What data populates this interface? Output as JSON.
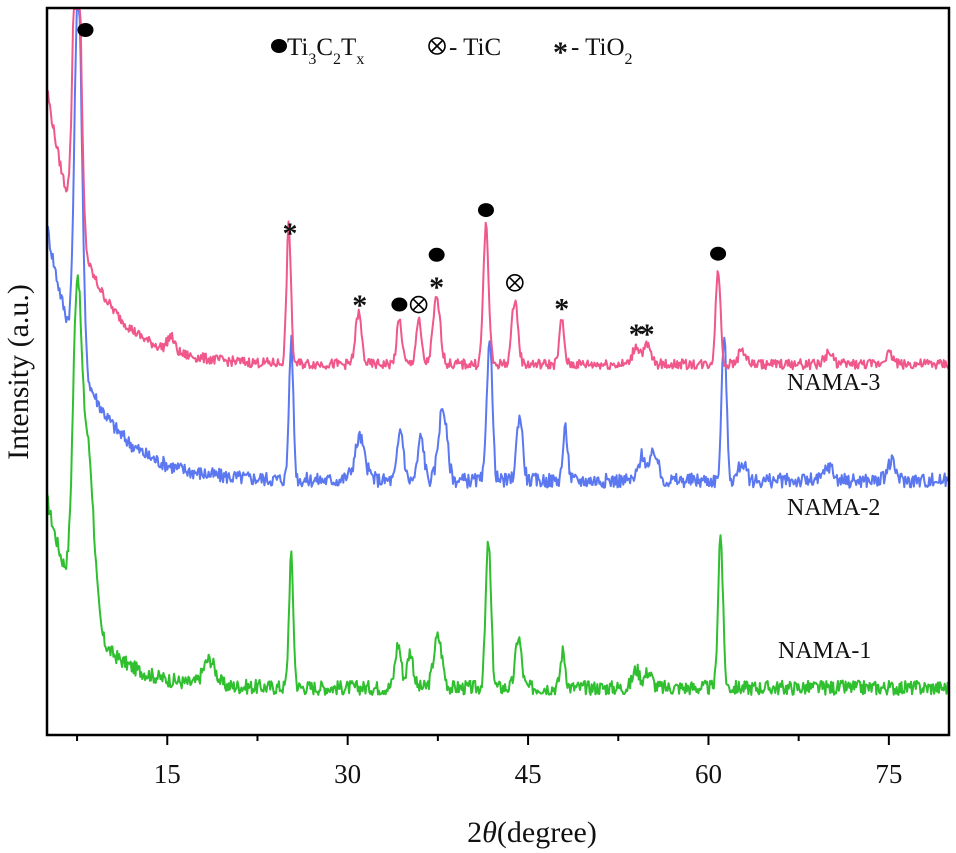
{
  "colors": {
    "NAMA-1": "#2fbf2f",
    "NAMA-2": "#5b78f0",
    "NAMA-3": "#f0578a",
    "axis": "#000000"
  },
  "legend_items": [
    {
      "marker": "filled-circle",
      "label_main": "- Ti",
      "label_parts": [
        "Ti",
        "3",
        "C",
        "2",
        "T",
        "x"
      ]
    },
    {
      "marker": "circled-times",
      "label": "- TiC"
    },
    {
      "marker": "asterisk",
      "label": "- TiO",
      "sub": "2"
    }
  ],
  "chart_data": {
    "type": "line",
    "xlabel_prefix": "2",
    "xlabel_theta": "θ",
    "xlabel_suffix": "(degree)",
    "ylabel": "Intensity (a.u.)",
    "xlim": [
      5,
      80
    ],
    "ylim": [
      0,
      100
    ],
    "x_ticks": [
      15,
      30,
      45,
      60,
      75
    ],
    "x_tick_labels": [
      "15",
      "30",
      "45",
      "60",
      "75"
    ],
    "y_ticks": [],
    "grid": false,
    "legend_position": "top",
    "series": [
      {
        "name": "NAMA-1",
        "baseline": 6.5,
        "curve_amp": 26,
        "curve_decay": 3.2,
        "noise": 1.0,
        "bumps": [
          [
            18.5,
            3.5,
            0.5
          ]
        ],
        "peaks": [
          [
            7.5,
            40,
            0.35
          ],
          [
            8.4,
            24,
            0.5
          ],
          [
            25.3,
            18,
            0.18
          ],
          [
            34.2,
            6,
            0.25
          ],
          [
            35.2,
            5,
            0.25
          ],
          [
            37.5,
            7,
            0.35
          ],
          [
            41.7,
            20,
            0.22
          ],
          [
            44.2,
            7,
            0.25
          ],
          [
            47.9,
            5,
            0.2
          ],
          [
            54.0,
            2.5,
            0.3
          ],
          [
            55.0,
            2.2,
            0.3
          ],
          [
            61.0,
            21,
            0.2
          ]
        ]
      },
      {
        "name": "NAMA-2",
        "baseline": 35,
        "curve_amp": 35,
        "curve_decay": 3.6,
        "noise": 1.0,
        "bumps": [
          [
            31.0,
            2.5,
            0.6
          ]
        ],
        "peaks": [
          [
            7.6,
            52,
            0.3
          ],
          [
            25.3,
            19,
            0.18
          ],
          [
            31.0,
            3.5,
            0.3
          ],
          [
            34.4,
            7,
            0.25
          ],
          [
            36.1,
            6,
            0.25
          ],
          [
            37.9,
            10,
            0.35
          ],
          [
            41.8,
            20,
            0.22
          ],
          [
            44.3,
            9,
            0.25
          ],
          [
            48.1,
            7,
            0.2
          ],
          [
            54.5,
            3.5,
            0.3
          ],
          [
            55.5,
            4,
            0.3
          ],
          [
            61.3,
            20,
            0.2
          ],
          [
            62.8,
            2.5,
            0.3
          ],
          [
            70.0,
            2,
            0.35
          ],
          [
            75.2,
            2.5,
            0.35
          ]
        ]
      },
      {
        "name": "NAMA-3",
        "baseline": 51,
        "curve_amp": 38,
        "curve_decay": 3.4,
        "noise": 0.7,
        "bumps": [
          [
            15.3,
            2.0,
            0.3
          ]
        ],
        "peaks": [
          [
            7.5,
            50,
            0.3
          ],
          [
            25.1,
            19,
            0.18
          ],
          [
            30.9,
            7,
            0.25
          ],
          [
            34.3,
            6,
            0.22
          ],
          [
            35.9,
            6,
            0.22
          ],
          [
            37.4,
            9,
            0.3
          ],
          [
            41.5,
            19,
            0.22
          ],
          [
            43.9,
            9,
            0.25
          ],
          [
            47.8,
            6,
            0.2
          ],
          [
            54.0,
            2.5,
            0.3
          ],
          [
            54.9,
            2.5,
            0.3
          ],
          [
            60.8,
            13,
            0.2
          ],
          [
            62.8,
            2,
            0.3
          ],
          [
            70.0,
            1.5,
            0.35
          ],
          [
            75.0,
            1.5,
            0.35
          ]
        ]
      }
    ],
    "sample_labels": [
      {
        "series": "NAMA-3",
        "text": "NAMA-3"
      },
      {
        "series": "NAMA-2",
        "text": "NAMA-2"
      },
      {
        "series": "NAMA-1",
        "text": "NAMA-1"
      }
    ],
    "annotations": [
      {
        "x": 8.2,
        "marker": "filled-circle"
      },
      {
        "x": 25.2,
        "marker": "asterisk"
      },
      {
        "x": 31.0,
        "marker": "asterisk"
      },
      {
        "x": 34.3,
        "marker": "filled-circle"
      },
      {
        "x": 35.9,
        "marker": "circled-times"
      },
      {
        "x": 37.4,
        "marker": "asterisk"
      },
      {
        "x": 37.4,
        "marker": "filled-circle"
      },
      {
        "x": 41.5,
        "marker": "filled-circle"
      },
      {
        "x": 43.9,
        "marker": "circled-times"
      },
      {
        "x": 47.8,
        "marker": "asterisk"
      },
      {
        "x": 54.0,
        "marker": "asterisk"
      },
      {
        "x": 54.9,
        "marker": "asterisk"
      },
      {
        "x": 60.8,
        "marker": "filled-circle"
      }
    ]
  }
}
